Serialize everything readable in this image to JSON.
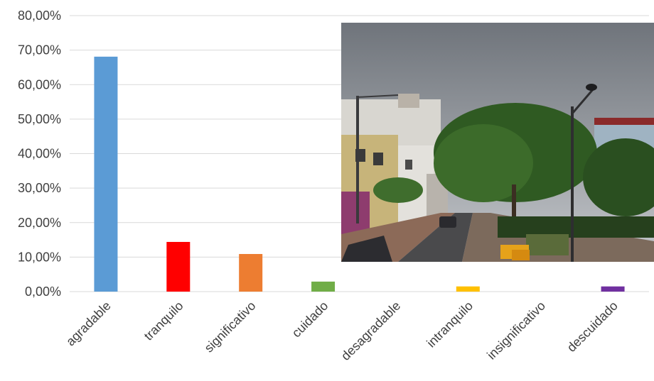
{
  "chart_data": {
    "type": "bar",
    "title": "",
    "xlabel": "",
    "ylabel": "",
    "categories": [
      "agradable",
      "tranquilo",
      "significativo",
      "cuidado",
      "desagradable",
      "intranquilo",
      "insignificativo",
      "descuidado"
    ],
    "values": [
      68.1,
      14.4,
      10.9,
      2.9,
      0.0,
      1.5,
      0.0,
      1.5
    ],
    "colors": [
      "#5b9bd5",
      "#ff0000",
      "#ed7d31",
      "#70ad47",
      "#a5a5a5",
      "#ffc000",
      "#a5a5a5",
      "#7030a0"
    ],
    "ylim": [
      0,
      80
    ],
    "yticks": [
      "0,00%",
      "10,00%",
      "20,00%",
      "30,00%",
      "40,00%",
      "50,00%",
      "60,00%",
      "70,00%",
      "80,00%"
    ],
    "grid": true,
    "legend": "none"
  },
  "photo": {
    "subject": "street-scene-photo",
    "colors": {
      "sky": "#8a8f96",
      "tree": "#2f5a22",
      "building": "#d8d6d0",
      "road": "#4a4a4c",
      "sidewalk": "#8c6a58"
    }
  }
}
